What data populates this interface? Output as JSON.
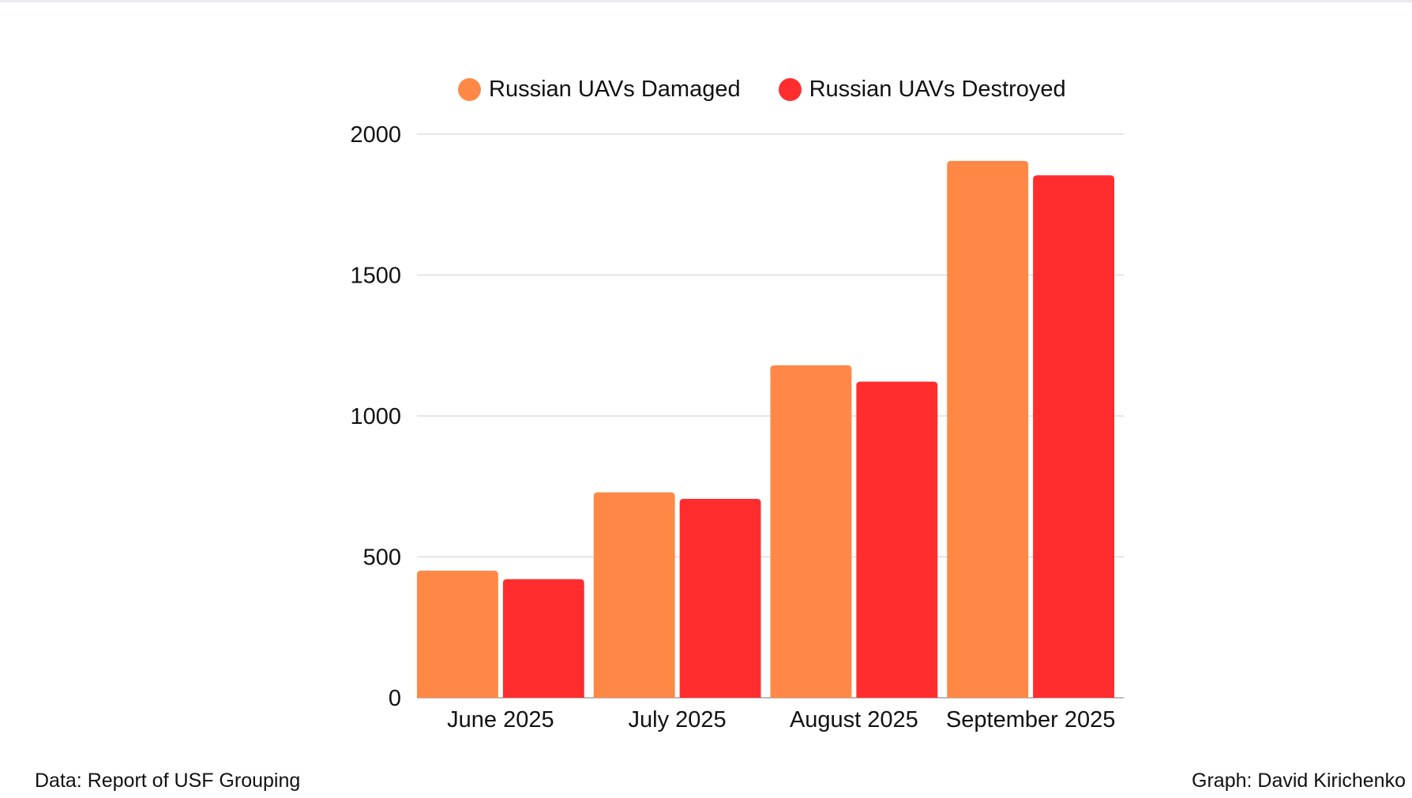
{
  "chart_data": {
    "type": "bar",
    "title": "",
    "xlabel": "",
    "ylabel": "",
    "categories": [
      "June 2025",
      "July 2025",
      "August 2025",
      "September 2025"
    ],
    "series": [
      {
        "name": "Russian UAVs Damaged",
        "color": "#FF8847",
        "values": [
          451,
          729,
          1180,
          1905
        ]
      },
      {
        "name": "Russian UAVs Destroyed",
        "color": "#FF2D2E",
        "values": [
          421,
          706,
          1122,
          1854
        ]
      }
    ],
    "yticks": [
      "0",
      "500",
      "1000",
      "1500",
      "2000"
    ],
    "ylim": [
      0,
      2000
    ],
    "grid": true,
    "legend_position": "top"
  },
  "footer": {
    "source": "Data: Report of USF Grouping",
    "credit": "Graph: David Kirichenko"
  }
}
